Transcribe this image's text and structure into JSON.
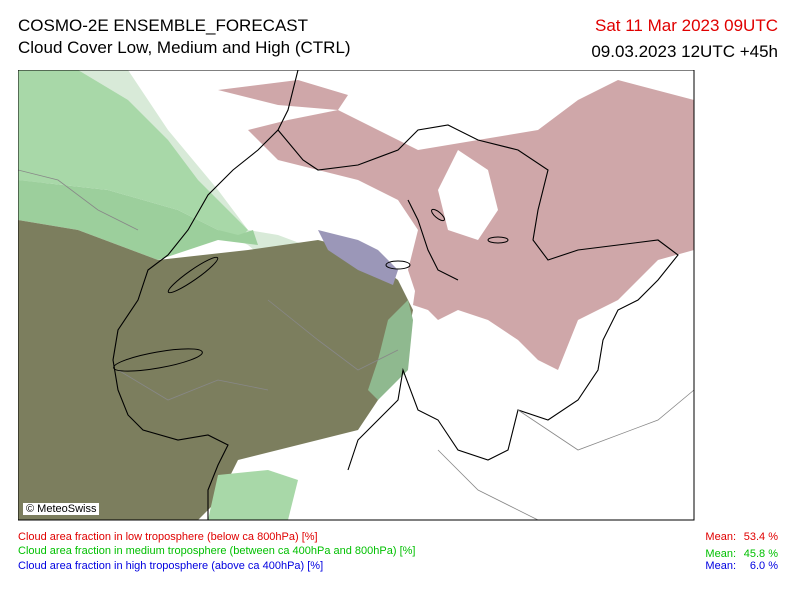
{
  "header": {
    "title": "COSMO-2E ENSEMBLE_FORECAST",
    "subtitle": "Cloud Cover Low, Medium and High (CTRL)",
    "valid_time": "Sat 11 Mar 2023 09UTC",
    "run_time": "09.03.2023 12UTC +45h"
  },
  "map": {
    "copyright": "© MeteoSwiss"
  },
  "legend": [
    {
      "label": "Cloud area fraction in low troposphere (below ca 800hPa) [%]",
      "mean_label": "Mean:",
      "mean_value": "53.4 %"
    },
    {
      "label": "Cloud area fraction in medium troposphere (between ca 400hPa and 800hPa) [%]",
      "mean_label": "Mean:",
      "mean_value": "45.8 %"
    },
    {
      "label": "Cloud area fraction in high troposphere (above ca 400hPa) [%]",
      "mean_label": "Mean:",
      "mean_value": "6.0 %"
    }
  ]
}
